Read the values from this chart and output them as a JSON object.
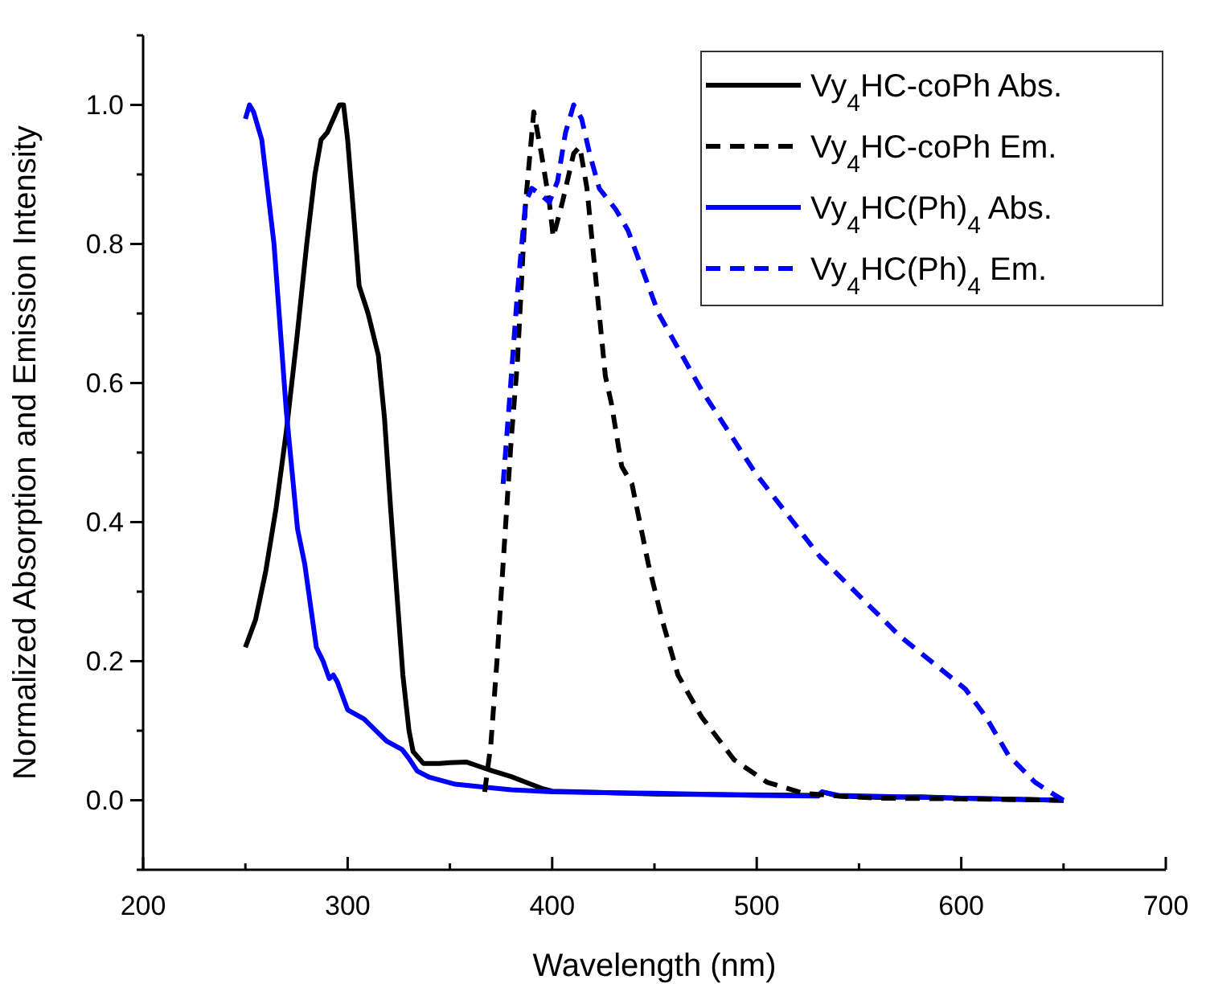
{
  "chart_data": {
    "type": "line",
    "xlabel": "Wavelength (nm)",
    "ylabel": "Normalized Absorption and Emission Intensity",
    "xlim": [
      200,
      700
    ],
    "ylim": [
      -0.1,
      1.1
    ],
    "xticks": [
      200,
      {
        "value": 250,
        "label": null
      },
      300,
      {
        "value": 350,
        "label": null
      },
      400,
      {
        "value": 450,
        "label": null
      },
      500,
      {
        "value": 550,
        "label": null
      },
      600,
      {
        "value": 650,
        "label": null
      },
      700
    ],
    "yticks": [
      {
        "value": -0.1,
        "label": null
      },
      {
        "value": 0,
        "label": "0.0"
      },
      {
        "value": 0.1,
        "label": null
      },
      {
        "value": 0.2,
        "label": "0.2"
      },
      {
        "value": 0.3,
        "label": null
      },
      {
        "value": 0.4,
        "label": "0.4"
      },
      {
        "value": 0.5,
        "label": null
      },
      {
        "value": 0.6,
        "label": "0.6"
      },
      {
        "value": 0.7,
        "label": null
      },
      {
        "value": 0.8,
        "label": "0.8"
      },
      {
        "value": 0.9,
        "label": null
      },
      {
        "value": 1.0,
        "label": "1.0"
      },
      {
        "value": 1.1,
        "label": null
      }
    ],
    "grid": false,
    "legend": "top right",
    "series": [
      {
        "name": "Vy$_{4}$HC-coPh Abs.",
        "color": "#000000",
        "line_style": "solid",
        "x": [
          250,
          255,
          260,
          265,
          270,
          275,
          280,
          284,
          287,
          290,
          293,
          296,
          298,
          300,
          303,
          305.6,
          310,
          315,
          318,
          321,
          324,
          327,
          330,
          332,
          337,
          345,
          350,
          358,
          365,
          371,
          380,
          387,
          395,
          400,
          450,
          530,
          532,
          540,
          560,
          580,
          600,
          650
        ],
        "values": [
          0.22,
          0.26,
          0.33,
          0.42,
          0.53,
          0.66,
          0.8,
          0.9,
          0.95,
          0.96,
          0.98,
          1.0,
          1.0,
          0.95,
          0.84,
          0.74,
          0.7,
          0.64,
          0.55,
          0.42,
          0.3,
          0.18,
          0.1,
          0.07,
          0.053,
          0.053,
          0.054,
          0.055,
          0.048,
          0.042,
          0.034,
          0.026,
          0.017,
          0.013,
          0.009,
          0.007,
          0.012,
          0.006,
          0.004,
          0.005,
          0.003,
          0
        ]
      },
      {
        "name": "Vy$_{4}$HC-coPh Em.",
        "color": "#000000",
        "line_style": "dashed",
        "x": [
          367,
          370,
          373,
          376,
          380,
          383,
          387,
          391,
          394.7,
          398.6,
          400.5,
          405,
          410.5,
          413.5,
          417,
          422,
          426,
          429,
          434,
          439,
          447,
          453.7,
          461.5,
          473,
          489,
          505,
          523,
          540,
          560,
          600,
          650
        ],
        "values": [
          0.012,
          0.08,
          0.2,
          0.34,
          0.52,
          0.63,
          0.86,
          0.99,
          0.93,
          0.86,
          0.81,
          0.86,
          0.93,
          0.94,
          0.88,
          0.73,
          0.61,
          0.57,
          0.48,
          0.455,
          0.34,
          0.26,
          0.18,
          0.12,
          0.058,
          0.026,
          0.01,
          0.006,
          0.003,
          0.002,
          0
        ]
      },
      {
        "name": "Vy$_{4}$HC(Ph)$_{4}$ Abs.",
        "color": "#0000ff",
        "line_style": "solid",
        "x": [
          250,
          252,
          254,
          258,
          264,
          270,
          275.5,
          279,
          284.7,
          288,
          291,
          293,
          295,
          300,
          308,
          319,
          326.6,
          330,
          334,
          340,
          352.6,
          366,
          380,
          400,
          450,
          500,
          530,
          532,
          540,
          600,
          650
        ],
        "values": [
          0.98,
          1.0,
          0.99,
          0.95,
          0.8,
          0.56,
          0.39,
          0.34,
          0.22,
          0.2,
          0.175,
          0.18,
          0.17,
          0.13,
          0.117,
          0.085,
          0.073,
          0.06,
          0.042,
          0.033,
          0.023,
          0.019,
          0.015,
          0.012,
          0.01,
          0.007,
          0.006,
          0.012,
          0.007,
          0.003,
          0
        ]
      },
      {
        "name": "Vy$_{4}$HC(Ph)$_{4}$ Em.",
        "color": "#0000ff",
        "line_style": "dashed",
        "x": [
          376,
          379,
          383,
          387,
          390,
          394.7,
          398.6,
          402.6,
          406.5,
          410.5,
          414.4,
          418.3,
          423,
          431,
          437,
          452,
          473,
          499.5,
          531,
          570,
          602,
          612,
          623,
          636,
          646,
          650
        ],
        "values": [
          0.455,
          0.57,
          0.73,
          0.86,
          0.88,
          0.87,
          0.86,
          0.89,
          0.96,
          1.0,
          0.98,
          0.93,
          0.88,
          0.85,
          0.82,
          0.7,
          0.59,
          0.47,
          0.35,
          0.236,
          0.16,
          0.12,
          0.065,
          0.026,
          0.007,
          0
        ]
      }
    ]
  }
}
